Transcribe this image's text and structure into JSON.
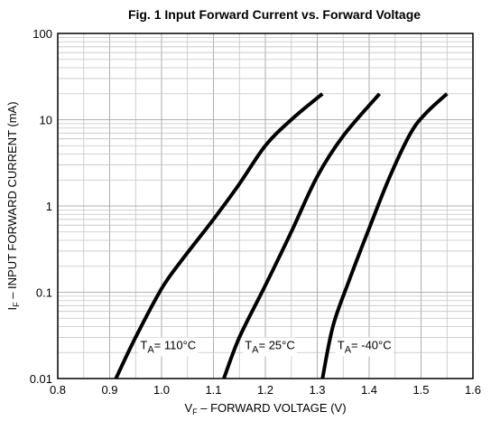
{
  "chart_data": {
    "type": "line",
    "title": "Fig. 1 Input Forward Current vs. Forward Voltage",
    "xlabel": "V F – FORWARD VOLTAGE (V)",
    "xlabel_main": "V",
    "xlabel_sub": "F",
    "xlabel_rest": " – FORWARD VOLTAGE (V)",
    "ylabel_main": "I",
    "ylabel_sub": "F",
    "ylabel_rest": " – INPUT FORWARD CURRENT (mA)",
    "x_scale": "linear",
    "y_scale": "log",
    "xlim": [
      0.8,
      1.6
    ],
    "ylim": [
      0.01,
      100
    ],
    "x_ticks": [
      "0.8",
      "0.9",
      "1.0",
      "1.1",
      "1.2",
      "1.3",
      "1.4",
      "1.5",
      "1.6"
    ],
    "y_ticks": [
      "0.01",
      "0.1",
      "1",
      "10",
      "100"
    ],
    "grid": true,
    "series": [
      {
        "label_main": "T",
        "label_sub": "A",
        "label_rest": "= 110°C",
        "points": [
          [
            0.912,
            0.01
          ],
          [
            0.95,
            0.03
          ],
          [
            1.0,
            0.11
          ],
          [
            1.04,
            0.24
          ],
          [
            1.1,
            0.7
          ],
          [
            1.15,
            1.8
          ],
          [
            1.2,
            5.0
          ],
          [
            1.25,
            10.0
          ],
          [
            1.31,
            20.0
          ]
        ]
      },
      {
        "label_main": "T",
        "label_sub": "A",
        "label_rest": "= 25°C",
        "points": [
          [
            1.12,
            0.01
          ],
          [
            1.15,
            0.03
          ],
          [
            1.2,
            0.12
          ],
          [
            1.25,
            0.5
          ],
          [
            1.3,
            2.2
          ],
          [
            1.35,
            6.5
          ],
          [
            1.42,
            20.0
          ]
        ]
      },
      {
        "label_main": "T",
        "label_sub": "A",
        "label_rest": "= -40°C",
        "points": [
          [
            1.31,
            0.01
          ],
          [
            1.33,
            0.04
          ],
          [
            1.36,
            0.13
          ],
          [
            1.4,
            0.55
          ],
          [
            1.44,
            2.2
          ],
          [
            1.48,
            7.0
          ],
          [
            1.51,
            12.0
          ],
          [
            1.55,
            20.0
          ]
        ]
      }
    ]
  }
}
